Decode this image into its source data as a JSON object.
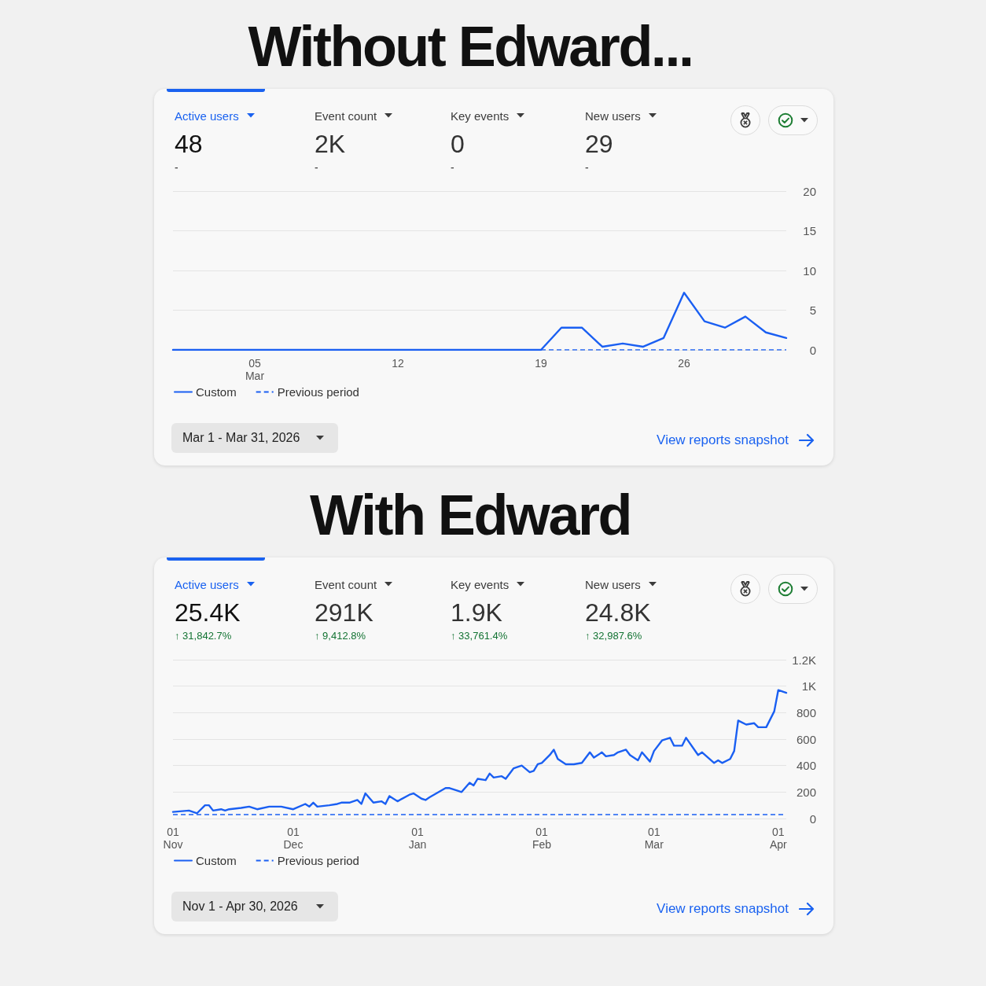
{
  "chart_data": [
    {
      "type": "line",
      "title": "Without Edward...",
      "annotations": [
        "Active users",
        "48",
        "-",
        "Event count",
        "2K",
        "-",
        "Key events",
        "0",
        "-",
        "New users",
        "29",
        "-",
        "Mar 1 - Mar 31, 2026",
        "View reports snapshot"
      ],
      "x": [
        "2026-03-01",
        "2026-03-02",
        "2026-03-03",
        "2026-03-04",
        "2026-03-05",
        "2026-03-06",
        "2026-03-07",
        "2026-03-08",
        "2026-03-09",
        "2026-03-10",
        "2026-03-11",
        "2026-03-12",
        "2026-03-13",
        "2026-03-14",
        "2026-03-15",
        "2026-03-16",
        "2026-03-17",
        "2026-03-18",
        "2026-03-19",
        "2026-03-20",
        "2026-03-21",
        "2026-03-22",
        "2026-03-23",
        "2026-03-24",
        "2026-03-25",
        "2026-03-26",
        "2026-03-27",
        "2026-03-28",
        "2026-03-29",
        "2026-03-30",
        "2026-03-31"
      ],
      "series": [
        {
          "name": "Custom",
          "color": "#1a5ff2",
          "values": [
            0,
            0,
            0,
            0,
            0,
            0,
            0,
            0,
            0,
            0,
            0,
            0,
            0,
            0,
            0,
            0,
            0,
            0,
            0,
            2.8,
            2.8,
            0.4,
            0.8,
            0.4,
            1.5,
            7.2,
            3.6,
            2.8,
            4.2,
            2.2,
            1.5
          ]
        },
        {
          "name": "Previous period",
          "color": "#1a5ff2",
          "line_style": "dashed",
          "x": [
            "2026-03-19",
            "2026-03-31"
          ],
          "values": [
            0,
            0
          ]
        }
      ],
      "xlim": [
        "2026-03-01",
        "2026-03-31"
      ],
      "xticks": [
        {
          "value": "2026-03-05",
          "label": "05\nMar"
        },
        {
          "value": "2026-03-12",
          "label": "12"
        },
        {
          "value": "2026-03-19",
          "label": "19"
        },
        {
          "value": "2026-03-26",
          "label": "26"
        }
      ],
      "ylim": [
        0,
        20
      ],
      "yticks": [
        0,
        5,
        10,
        15,
        20
      ],
      "grid": "y",
      "legend": "bottom left"
    },
    {
      "type": "line",
      "title": "With Edward",
      "annotations": [
        "Active users",
        "25.4K",
        "↑ 31,842.7%",
        "Event count",
        "291K",
        "↑ 9,412.8%",
        "Key events",
        "1.9K",
        "↑ 33,761.4%",
        "New users",
        "24.8K",
        "↑ 32,987.6%",
        "Nov 1 - Apr 30, 2026",
        "View reports snapshot"
      ],
      "x": [
        "2025-11-01",
        "2025-11-05",
        "2025-11-06",
        "2025-11-07",
        "2025-11-09",
        "2025-11-10",
        "2025-11-11",
        "2025-11-13",
        "2025-11-14",
        "2025-11-15",
        "2025-11-18",
        "2025-11-20",
        "2025-11-22",
        "2025-11-25",
        "2025-11-28",
        "2025-12-01",
        "2025-12-04",
        "2025-12-05",
        "2025-12-06",
        "2025-12-07",
        "2025-12-10",
        "2025-12-12",
        "2025-12-13",
        "2025-12-15",
        "2025-12-17",
        "2025-12-18",
        "2025-12-19",
        "2025-12-21",
        "2025-12-23",
        "2025-12-24",
        "2025-12-25",
        "2025-12-27",
        "2025-12-30",
        "2025-12-31",
        "2026-01-02",
        "2026-01-03",
        "2026-01-04",
        "2026-01-08",
        "2026-01-09",
        "2026-01-11",
        "2026-01-12",
        "2026-01-14",
        "2026-01-15",
        "2026-01-16",
        "2026-01-18",
        "2026-01-19",
        "2026-01-20",
        "2026-01-22",
        "2026-01-23",
        "2026-01-25",
        "2026-01-27",
        "2026-01-29",
        "2026-01-30",
        "2026-01-31",
        "2026-02-01",
        "2026-02-03",
        "2026-02-04",
        "2026-02-05",
        "2026-02-07",
        "2026-02-09",
        "2026-02-11",
        "2026-02-13",
        "2026-02-14",
        "2026-02-16",
        "2026-02-17",
        "2026-02-19",
        "2026-02-20",
        "2026-02-22",
        "2026-02-23",
        "2026-02-25",
        "2026-02-26",
        "2026-02-28",
        "2026-03-01",
        "2026-03-03",
        "2026-03-05",
        "2026-03-06",
        "2026-03-08",
        "2026-03-09",
        "2026-03-12",
        "2026-03-13",
        "2026-03-16",
        "2026-03-17",
        "2026-03-18",
        "2026-03-20",
        "2026-03-21",
        "2026-03-22",
        "2026-03-24",
        "2026-03-26",
        "2026-03-27",
        "2026-03-29",
        "2026-03-31",
        "2026-04-01",
        "2026-04-03"
      ],
      "series": [
        {
          "name": "Custom",
          "color": "#1a5ff2",
          "values": [
            50,
            60,
            50,
            40,
            100,
            100,
            60,
            70,
            60,
            70,
            80,
            90,
            70,
            90,
            90,
            70,
            110,
            90,
            120,
            90,
            100,
            110,
            120,
            120,
            140,
            110,
            190,
            120,
            130,
            110,
            170,
            130,
            180,
            190,
            150,
            140,
            160,
            230,
            230,
            210,
            200,
            270,
            250,
            300,
            290,
            340,
            310,
            320,
            300,
            380,
            400,
            350,
            360,
            410,
            420,
            480,
            520,
            450,
            410,
            410,
            420,
            500,
            460,
            500,
            470,
            480,
            500,
            520,
            480,
            440,
            500,
            430,
            510,
            590,
            610,
            550,
            550,
            610,
            480,
            500,
            420,
            440,
            420,
            450,
            510,
            740,
            710,
            720,
            690,
            690,
            810,
            970,
            950
          ]
        },
        {
          "name": "Previous period",
          "color": "#1a5ff2",
          "line_style": "dashed",
          "x": [
            "2025-11-01",
            "2026-04-03"
          ],
          "values": [
            30,
            30
          ]
        }
      ],
      "xlim": [
        "2025-11-01",
        "2026-04-03"
      ],
      "xticks": [
        {
          "value": "2025-11-01",
          "label": "01\nNov"
        },
        {
          "value": "2025-12-01",
          "label": "01\nDec"
        },
        {
          "value": "2026-01-01",
          "label": "01\nJan"
        },
        {
          "value": "2026-02-01",
          "label": "01\nFeb"
        },
        {
          "value": "2026-03-01",
          "label": "01\nMar"
        },
        {
          "value": "2026-04-01",
          "label": "01\nApr"
        }
      ],
      "ylim": [
        0,
        1200
      ],
      "yticks": [
        0,
        200,
        400,
        600,
        800,
        {
          "value": 1000,
          "label": "1K"
        },
        {
          "value": 1200,
          "label": "1.2K"
        }
      ],
      "grid": "y",
      "legend": "bottom left"
    }
  ]
}
